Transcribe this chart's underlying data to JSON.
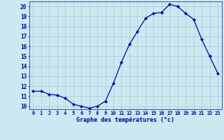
{
  "hours": [
    0,
    1,
    2,
    3,
    4,
    5,
    6,
    7,
    8,
    9,
    10,
    11,
    12,
    13,
    14,
    15,
    16,
    17,
    18,
    19,
    20,
    21,
    22,
    23
  ],
  "temps": [
    11.5,
    11.5,
    11.2,
    11.1,
    10.8,
    10.2,
    10.0,
    9.8,
    10.0,
    10.5,
    12.3,
    14.4,
    16.2,
    17.5,
    18.8,
    19.3,
    19.4,
    20.2,
    20.0,
    19.3,
    18.7,
    16.7,
    15.0,
    13.3
  ],
  "yticks": [
    10,
    11,
    12,
    13,
    14,
    15,
    16,
    17,
    18,
    19,
    20
  ],
  "xlabel": "Graphe des températures (°c)",
  "bg_color": "#cce8f0",
  "grid_color": "#aac8d8",
  "line_color": "#0000bb",
  "marker_color": "#0000bb",
  "axis_color": "#3333aa",
  "label_color": "#0000bb",
  "tick_color": "#0000bb",
  "xlim_min": -0.5,
  "xlim_max": 23.5,
  "ylim_min": 9.7,
  "ylim_max": 20.5
}
